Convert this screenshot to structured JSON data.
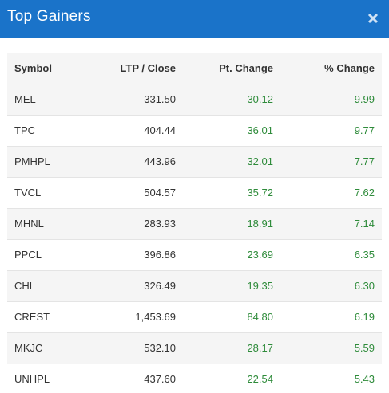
{
  "header": {
    "title": "Top Gainers",
    "close_icon": "close-icon"
  },
  "colors": {
    "header_bg": "#1a73c9",
    "positive": "#2e8b3a"
  },
  "table": {
    "columns": [
      "Symbol",
      "LTP / Close",
      "Pt. Change",
      "% Change"
    ],
    "rows": [
      {
        "symbol": "MEL",
        "ltp": "331.50",
        "pt": "30.12",
        "pct": "9.99"
      },
      {
        "symbol": "TPC",
        "ltp": "404.44",
        "pt": "36.01",
        "pct": "9.77"
      },
      {
        "symbol": "PMHPL",
        "ltp": "443.96",
        "pt": "32.01",
        "pct": "7.77"
      },
      {
        "symbol": "TVCL",
        "ltp": "504.57",
        "pt": "35.72",
        "pct": "7.62"
      },
      {
        "symbol": "MHNL",
        "ltp": "283.93",
        "pt": "18.91",
        "pct": "7.14"
      },
      {
        "symbol": "PPCL",
        "ltp": "396.86",
        "pt": "23.69",
        "pct": "6.35"
      },
      {
        "symbol": "CHL",
        "ltp": "326.49",
        "pt": "19.35",
        "pct": "6.30"
      },
      {
        "symbol": "CREST",
        "ltp": "1,453.69",
        "pt": "84.80",
        "pct": "6.19"
      },
      {
        "symbol": "MKJC",
        "ltp": "532.10",
        "pt": "28.17",
        "pct": "5.59"
      },
      {
        "symbol": "UNHPL",
        "ltp": "437.60",
        "pt": "22.54",
        "pct": "5.43"
      }
    ]
  }
}
